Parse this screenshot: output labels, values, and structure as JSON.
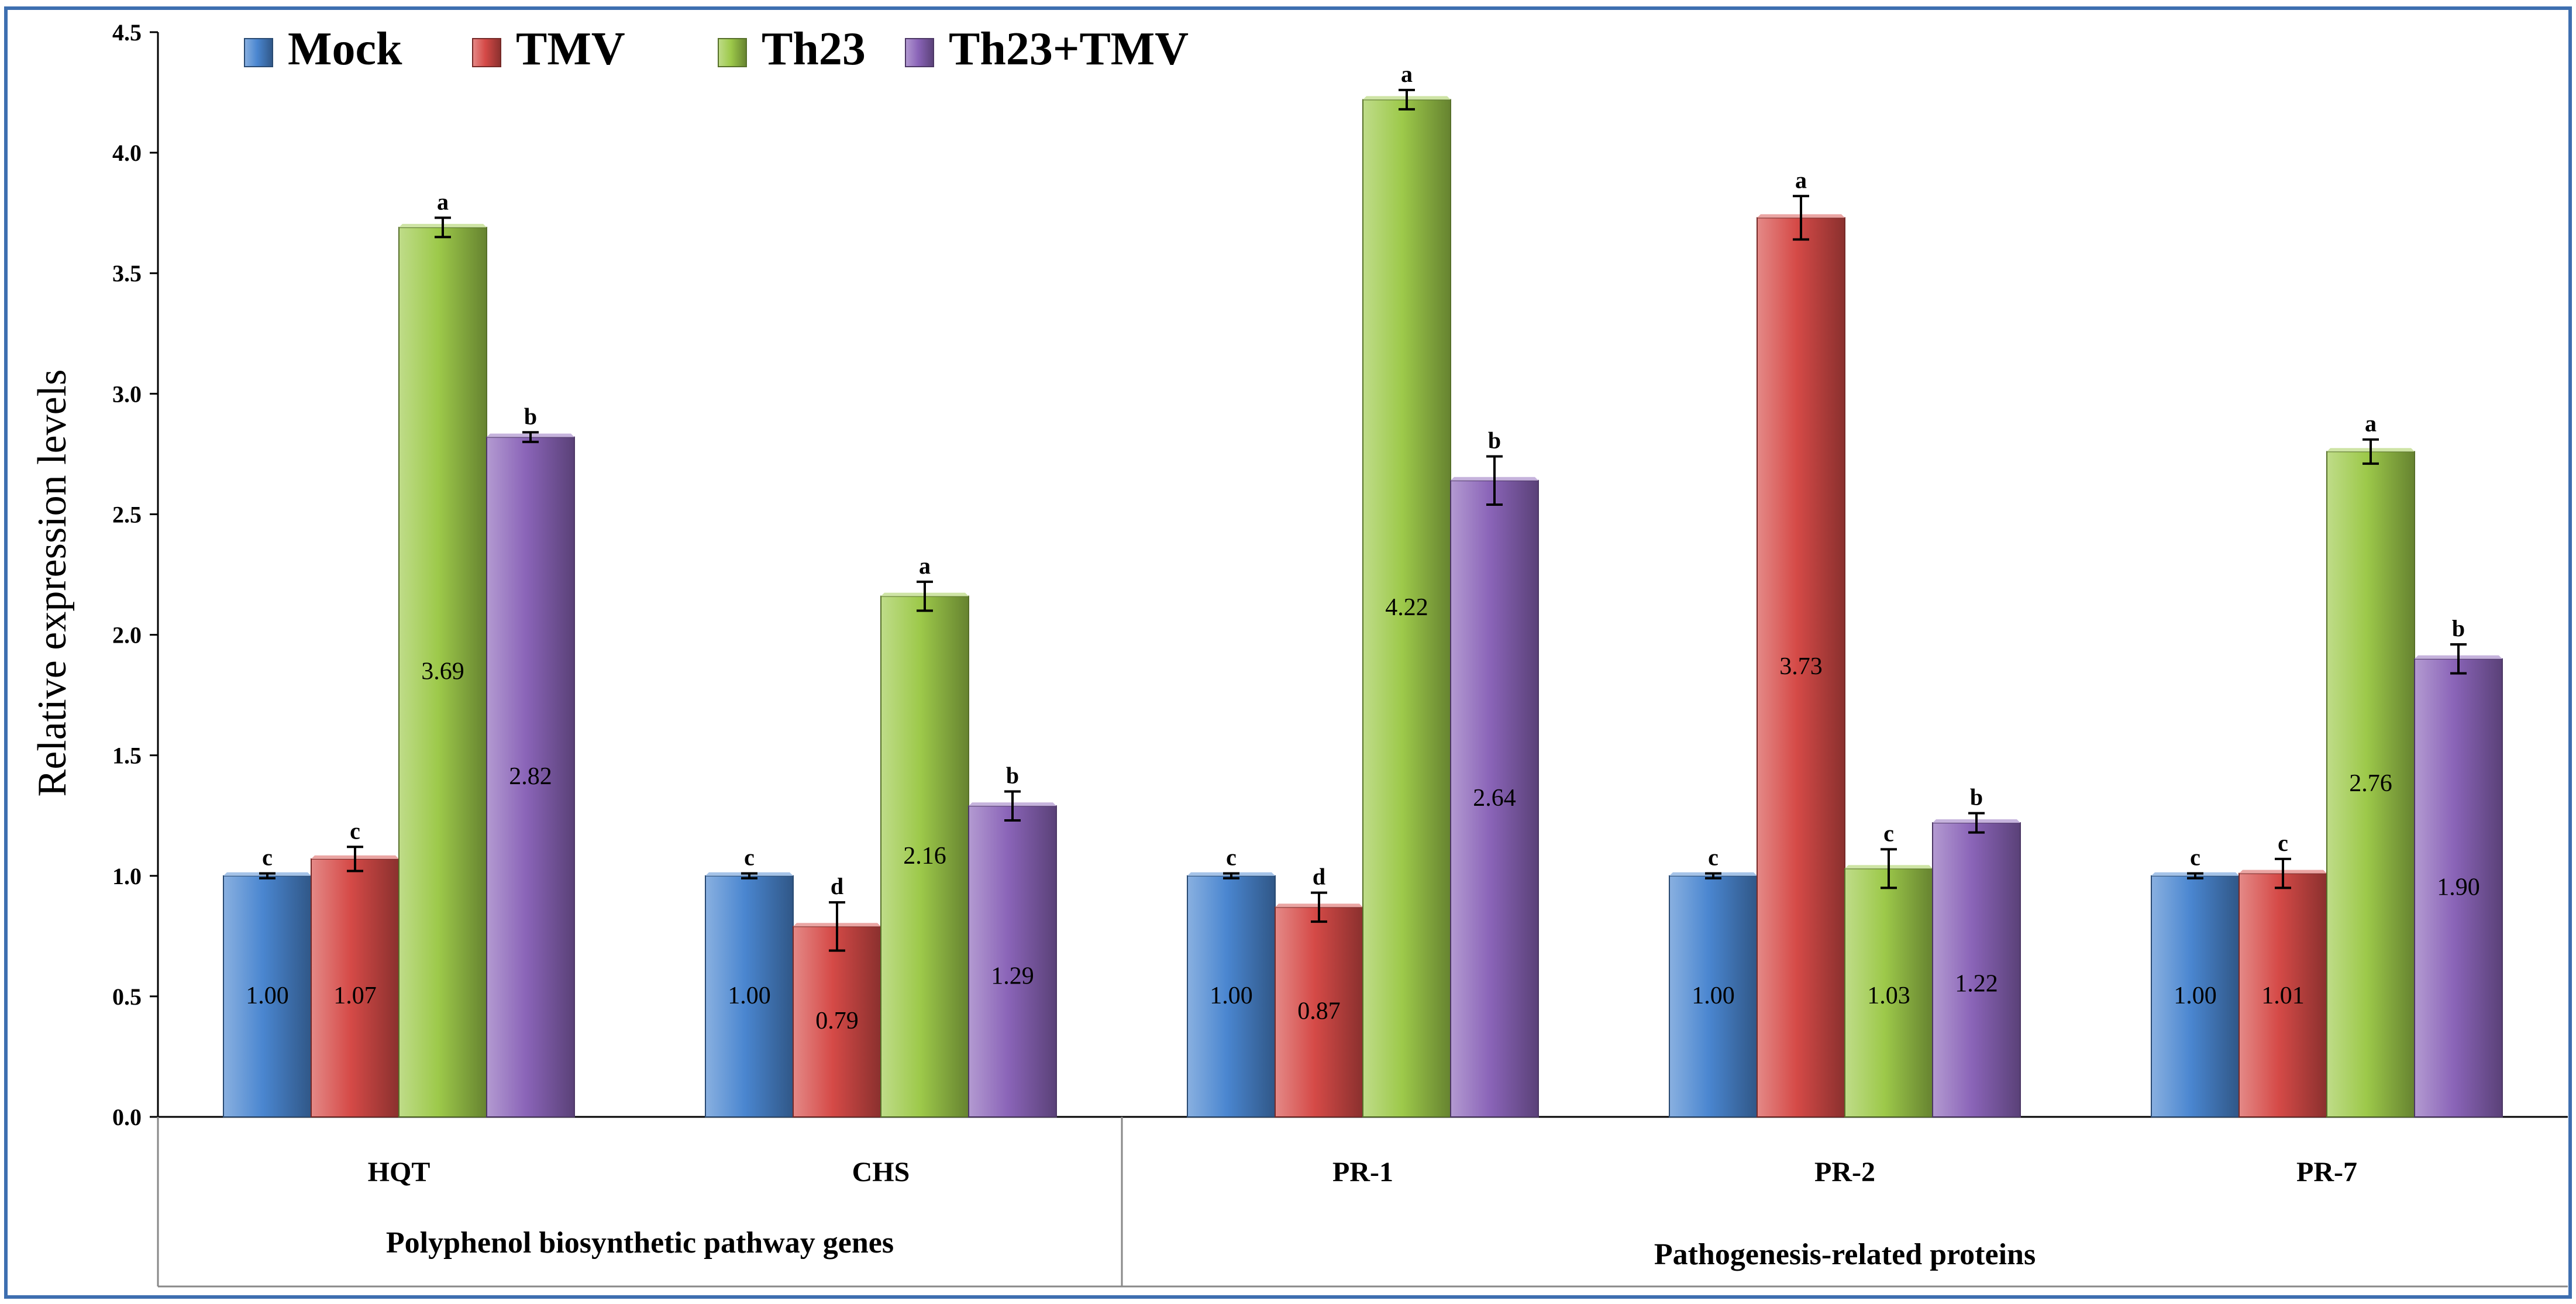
{
  "chart_data": {
    "type": "bar",
    "ylabel": "Relative expression levels",
    "ylim": [
      0,
      4.5
    ],
    "yticks": [
      0.0,
      0.5,
      1.0,
      1.5,
      2.0,
      2.5,
      3.0,
      3.5,
      4.0,
      4.5
    ],
    "ytick_labels": [
      "0.0",
      "0.5",
      "1.0",
      "1.5",
      "2.0",
      "2.5",
      "3.0",
      "3.5",
      "4.0",
      "4.5"
    ],
    "legend_position": "top-left",
    "grid": false,
    "categories": [
      "HQT",
      "CHS",
      "PR-1",
      "PR-2",
      "PR-7"
    ],
    "groups": [
      {
        "label": "Polyphenol biosynthetic pathway genes",
        "categories": [
          "HQT",
          "CHS"
        ]
      },
      {
        "label": "Pathogenesis-related proteins",
        "categories": [
          "PR-1",
          "PR-2",
          "PR-7"
        ]
      }
    ],
    "series": [
      {
        "name": "Mock",
        "color": "#4a86d0",
        "values": [
          1.0,
          1.0,
          1.0,
          1.0,
          1.0
        ],
        "value_labels": [
          "1.00",
          "1.00",
          "1.00",
          "1.00",
          "1.00"
        ],
        "errors": [
          0.01,
          0.01,
          0.01,
          0.01,
          0.01
        ],
        "letters": [
          "c",
          "c",
          "c",
          "c",
          "c"
        ]
      },
      {
        "name": "TMV",
        "color": "#d54a47",
        "values": [
          1.07,
          0.79,
          0.87,
          3.73,
          1.01
        ],
        "value_labels": [
          "1.07",
          "0.79",
          "0.87",
          "3.73",
          "1.01"
        ],
        "errors": [
          0.05,
          0.1,
          0.06,
          0.09,
          0.06
        ],
        "letters": [
          "c",
          "d",
          "d",
          "a",
          "c"
        ]
      },
      {
        "name": "Th23",
        "color": "#9dc94a",
        "values": [
          3.69,
          2.16,
          4.22,
          1.03,
          2.76
        ],
        "value_labels": [
          "3.69",
          "2.16",
          "4.22",
          "1.03",
          "2.76"
        ],
        "errors": [
          0.04,
          0.06,
          0.04,
          0.08,
          0.05
        ],
        "letters": [
          "a",
          "a",
          "a",
          "c",
          "a"
        ]
      },
      {
        "name": "Th23+TMV",
        "color": "#8a64b8",
        "values": [
          2.82,
          1.29,
          2.64,
          1.22,
          1.9
        ],
        "value_labels": [
          "2.82",
          "1.29",
          "2.64",
          "1.22",
          "1.90"
        ],
        "errors": [
          0.02,
          0.06,
          0.1,
          0.04,
          0.06
        ],
        "letters": [
          "b",
          "b",
          "b",
          "b",
          "b"
        ]
      }
    ]
  }
}
